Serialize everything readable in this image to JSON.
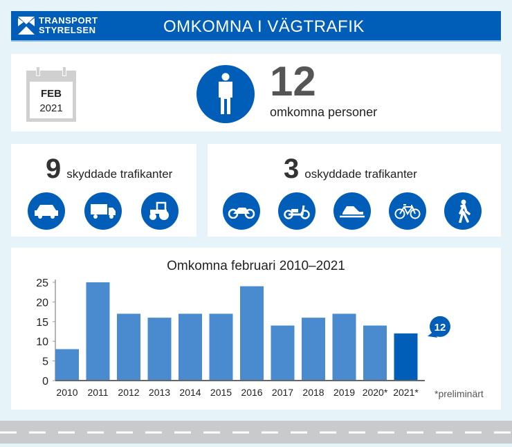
{
  "header": {
    "logo": [
      "TRANSPORT",
      "STYRELSEN"
    ],
    "title": "OMKOMNA I VÄGTRAFIK"
  },
  "summary": {
    "month": "FEB",
    "year": "2021",
    "count": "12",
    "label": "omkomna personer",
    "icon": "person-icon"
  },
  "protected": {
    "count": "9",
    "label": "skyddade trafikanter",
    "icons": [
      "car-icon",
      "truck-icon",
      "tractor-icon"
    ]
  },
  "unprotected": {
    "count": "3",
    "label": "oskyddade trafikanter",
    "icons": [
      "motorcycle-icon",
      "moped-icon",
      "snowmobile-icon",
      "bicycle-icon",
      "pedestrian-icon"
    ]
  },
  "colors": {
    "brand": "#005eb8",
    "bar": "#4a8bd0",
    "highlight": "#005eb8"
  },
  "chart_data": {
    "type": "bar",
    "title": "Omkomna februari 2010–2021",
    "categories": [
      "2010",
      "2011",
      "2012",
      "2013",
      "2014",
      "2015",
      "2016",
      "2017",
      "2018",
      "2019",
      "2020*",
      "2021*"
    ],
    "values": [
      8,
      25,
      17,
      16,
      17,
      17,
      24,
      14,
      16,
      17,
      14,
      12
    ],
    "yticks": [
      "0",
      "5",
      "10",
      "15",
      "20",
      "25"
    ],
    "ylim": [
      0,
      25
    ],
    "highlight_label": "12",
    "footnote": "*preliminärt",
    "grid": false
  }
}
